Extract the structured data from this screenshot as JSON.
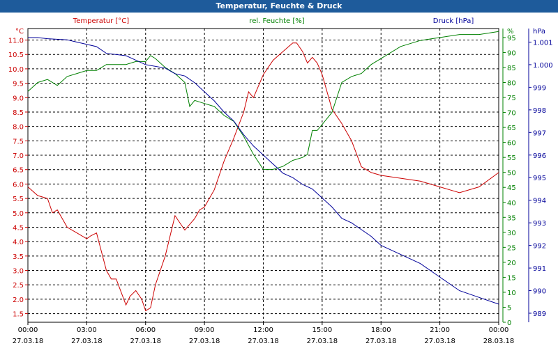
{
  "window": {
    "title": "Temperatur, Feuchte & Druck"
  },
  "chart_data": {
    "type": "line",
    "title": "Temperatur, Feuchte & Druck",
    "grid": true,
    "legend": "top",
    "x_ticks": [
      {
        "time": "00:00",
        "date": "27.03.18"
      },
      {
        "time": "03:00",
        "date": "27.03.18"
      },
      {
        "time": "06:00",
        "date": "27.03.18"
      },
      {
        "time": "09:00",
        "date": "27.03.18"
      },
      {
        "time": "12:00",
        "date": "27.03.18"
      },
      {
        "time": "15:00",
        "date": "27.03.18"
      },
      {
        "time": "18:00",
        "date": "27.03.18"
      },
      {
        "time": "21:00",
        "date": "27.03.18"
      },
      {
        "time": "00:00",
        "date": "28.03.18"
      }
    ],
    "xlim_hours": [
      0,
      24
    ],
    "axes": {
      "temperature": {
        "unit": "°C",
        "range": [
          1.2,
          11.4
        ],
        "ticks": [
          "1.5",
          "2.0",
          "2.5",
          "3.0",
          "3.5",
          "4.0",
          "4.5",
          "5.0",
          "5.5",
          "6.0",
          "6.5",
          "7.0",
          "7.5",
          "8.0",
          "8.5",
          "9.0",
          "9.5",
          "10.0",
          "10.5",
          "11.0"
        ]
      },
      "humidity": {
        "unit": "%",
        "range": [
          0,
          98
        ],
        "ticks": [
          "0",
          "5",
          "10",
          "15",
          "20",
          "25",
          "30",
          "35",
          "40",
          "45",
          "50",
          "55",
          "60",
          "65",
          "70",
          "75",
          "80",
          "85",
          "90",
          "95"
        ]
      },
      "pressure": {
        "unit": "hPa",
        "range": [
          988.6,
          1001.6
        ],
        "ticks": [
          "989",
          "990",
          "991",
          "992",
          "993",
          "994",
          "995",
          "996",
          "997",
          "998",
          "999",
          "1.000",
          "1.001"
        ]
      }
    },
    "series": [
      {
        "name": "Temperatur [°C]",
        "axis": "temperature",
        "color": "#cc0000",
        "hours": [
          0,
          0.5,
          1,
          1.25,
          1.5,
          2,
          2.5,
          3,
          3.2,
          3.5,
          4,
          4.25,
          4.5,
          5,
          5.2,
          5.5,
          5.8,
          6,
          6.25,
          6.5,
          7,
          7.5,
          8,
          8.25,
          8.5,
          8.75,
          9,
          9.5,
          10,
          10.5,
          11,
          11.25,
          11.5,
          12,
          12.5,
          13,
          13.5,
          13.7,
          14,
          14.25,
          14.5,
          14.75,
          15,
          15.5,
          16,
          16.5,
          17,
          17.5,
          18,
          19,
          20,
          21,
          21.5,
          22,
          23,
          24
        ],
        "values": [
          5.9,
          5.6,
          5.5,
          5.0,
          5.1,
          4.5,
          4.3,
          4.1,
          4.2,
          4.3,
          3.0,
          2.7,
          2.7,
          1.8,
          2.1,
          2.3,
          2.0,
          1.6,
          1.7,
          2.5,
          3.5,
          4.9,
          4.4,
          4.6,
          4.8,
          5.1,
          5.2,
          5.8,
          6.8,
          7.6,
          8.5,
          9.2,
          9.0,
          9.8,
          10.3,
          10.6,
          10.9,
          10.9,
          10.6,
          10.2,
          10.4,
          10.2,
          9.8,
          8.6,
          8.1,
          7.5,
          6.6,
          6.4,
          6.3,
          6.2,
          6.1,
          5.9,
          5.8,
          5.7,
          5.9,
          6.4
        ]
      },
      {
        "name": "rel. Feuchte [%]",
        "axis": "humidity",
        "color": "#008000",
        "hours": [
          0,
          0.5,
          1,
          1.5,
          2,
          2.5,
          3,
          3.5,
          4,
          4.5,
          5,
          5.5,
          6,
          6.25,
          6.5,
          7,
          7.5,
          8,
          8.25,
          8.5,
          9,
          9.5,
          10,
          10.5,
          11,
          11.5,
          12,
          12.5,
          13,
          13.5,
          14,
          14.25,
          14.5,
          14.75,
          15,
          15.5,
          16,
          16.5,
          17,
          17.5,
          18,
          19,
          20,
          21,
          22,
          23,
          24
        ],
        "values": [
          77,
          80,
          81,
          79,
          82,
          83,
          84,
          84,
          86,
          86,
          86,
          87,
          87,
          89,
          88,
          85,
          83,
          80,
          72,
          74,
          73,
          72,
          69,
          67,
          62,
          56,
          51,
          51,
          52,
          54,
          55,
          56,
          64,
          64,
          66,
          70,
          80,
          82,
          83,
          86,
          88,
          92,
          94,
          95,
          96,
          96,
          97
        ]
      },
      {
        "name": "Druck [hPa]",
        "axis": "pressure",
        "color": "#000099",
        "hours": [
          0,
          0.5,
          1,
          2,
          2.5,
          3,
          3.5,
          4,
          5,
          5.5,
          6,
          7,
          7.5,
          8,
          8.5,
          9,
          9.5,
          10,
          10.5,
          11,
          11.5,
          12,
          12.5,
          13,
          13.5,
          14,
          14.5,
          15,
          15.5,
          16,
          16.5,
          17,
          17.5,
          18,
          19,
          20,
          21,
          22,
          23,
          24
        ],
        "values": [
          1001.2,
          1001.2,
          1001.15,
          1001.1,
          1001.0,
          1000.9,
          1000.8,
          1000.5,
          1000.4,
          1000.2,
          1000.0,
          999.85,
          999.6,
          999.5,
          999.2,
          998.8,
          998.4,
          997.9,
          997.5,
          996.9,
          996.4,
          996.0,
          995.6,
          995.2,
          995.0,
          994.7,
          994.5,
          994.1,
          993.7,
          993.2,
          993.0,
          992.7,
          992.4,
          992.0,
          991.6,
          991.2,
          990.6,
          990.0,
          989.7,
          989.4
        ]
      }
    ]
  }
}
